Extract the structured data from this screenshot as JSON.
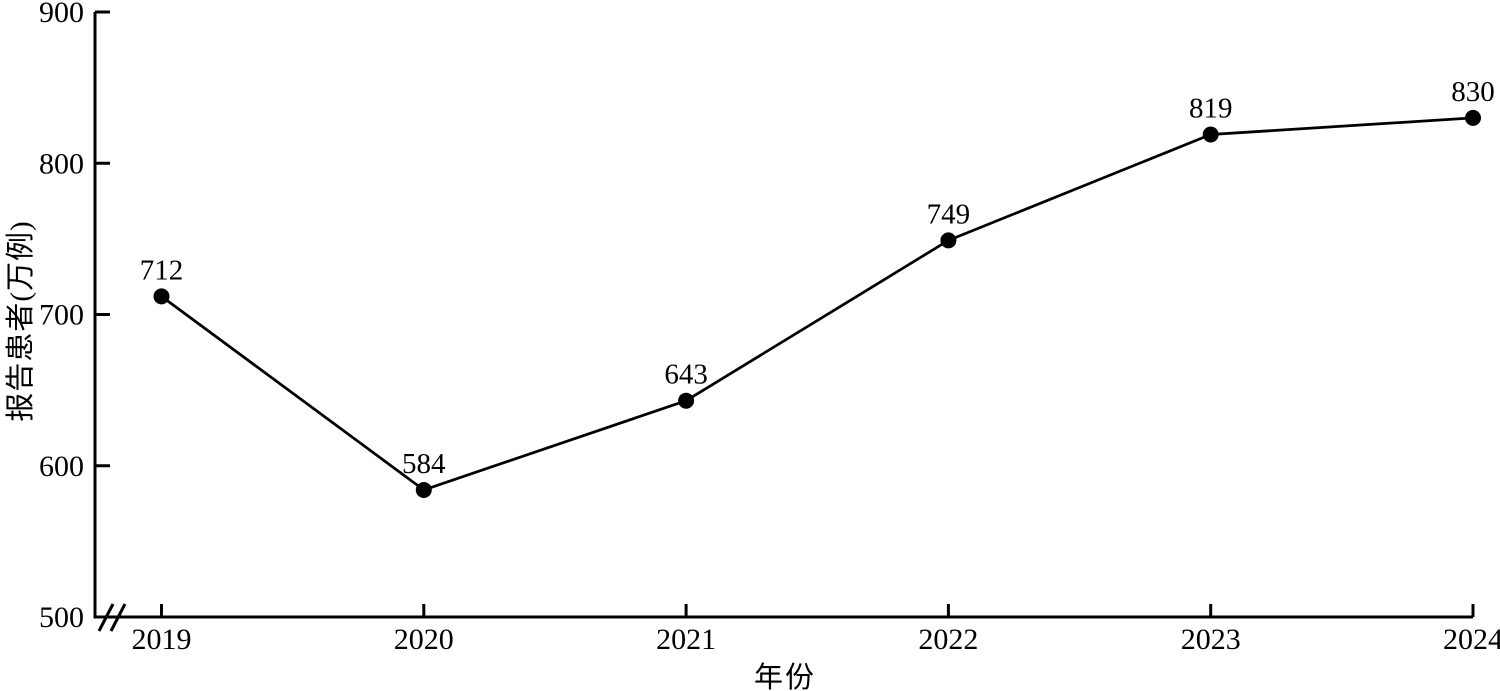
{
  "chart_data": {
    "type": "line",
    "xlabel": "年份",
    "ylabel": "报告患者(万例)",
    "categories": [
      "2019",
      "2020",
      "2021",
      "2022",
      "2023",
      "2024"
    ],
    "series": [
      {
        "name": "报告患者",
        "values": [
          712,
          584,
          643,
          749,
          819,
          830
        ],
        "point_labels": [
          "712",
          "584",
          "643",
          "749",
          "819",
          "830"
        ]
      }
    ],
    "ylim": [
      500,
      900
    ],
    "yticks": [
      500,
      600,
      700,
      800,
      900
    ],
    "x_axis_break": true,
    "grid": false,
    "legend_position": "none",
    "colors": {
      "line": "#000000",
      "marker": "#000000",
      "text": "#000000",
      "background": "#ffffff"
    }
  }
}
